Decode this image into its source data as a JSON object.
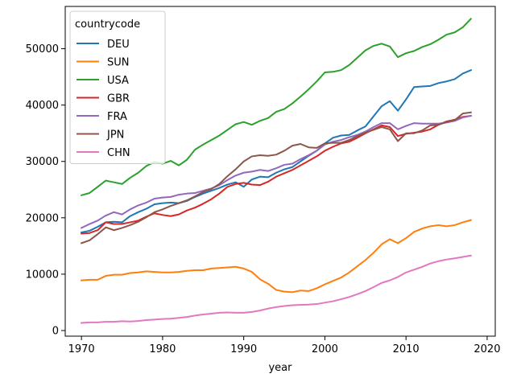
{
  "chart_data": {
    "type": "line",
    "xlabel": "year",
    "ylabel": "",
    "xlim": [
      1968,
      2021
    ],
    "ylim": [
      -1000,
      57500
    ],
    "xticks": [
      1970,
      1980,
      1990,
      2000,
      2010,
      2020
    ],
    "yticks": [
      0,
      10000,
      20000,
      30000,
      40000,
      50000
    ],
    "grid": false,
    "legend": {
      "title": "countrycode",
      "placement": "top-left"
    },
    "x": [
      1970,
      1971,
      1972,
      1973,
      1974,
      1975,
      1976,
      1977,
      1978,
      1979,
      1980,
      1981,
      1982,
      1983,
      1984,
      1985,
      1986,
      1987,
      1988,
      1989,
      1990,
      1991,
      1992,
      1993,
      1994,
      1995,
      1996,
      1997,
      1998,
      1999,
      2000,
      2001,
      2002,
      2003,
      2004,
      2005,
      2006,
      2007,
      2008,
      2009,
      2010,
      2011,
      2012,
      2013,
      2014,
      2015,
      2016,
      2017,
      2018
    ],
    "series": [
      {
        "name": "DEU",
        "color": "#1f77b4",
        "values": [
          17400,
          17700,
          18400,
          19200,
          19300,
          19200,
          20300,
          21000,
          21600,
          22400,
          22600,
          22700,
          22600,
          23000,
          23700,
          24300,
          24800,
          25300,
          25900,
          26300,
          25500,
          26800,
          27300,
          27200,
          28000,
          28600,
          29000,
          30000,
          31000,
          31900,
          33200,
          34200,
          34600,
          34700,
          35500,
          36200,
          38000,
          39800,
          40700,
          39000,
          41000,
          43200,
          43300,
          43400,
          43900,
          44200,
          44600,
          45600,
          46200
        ]
      },
      {
        "name": "SUN",
        "color": "#ff7f0e",
        "values": [
          8900,
          9000,
          9000,
          9700,
          9900,
          9900,
          10200,
          10300,
          10500,
          10400,
          10300,
          10300,
          10400,
          10600,
          10700,
          10700,
          11000,
          11100,
          11200,
          11300,
          11000,
          10400,
          9100,
          8300,
          7200,
          6900,
          6800,
          7100,
          7000,
          7500,
          8200,
          8800,
          9400,
          10300,
          11400,
          12500,
          13800,
          15300,
          16200,
          15500,
          16400,
          17500,
          18100,
          18500,
          18700,
          18500,
          18700,
          19200,
          19600
        ]
      },
      {
        "name": "USA",
        "color": "#2ca02c",
        "values": [
          24000,
          24400,
          25500,
          26600,
          26300,
          26000,
          27100,
          28000,
          29200,
          29900,
          29600,
          30100,
          29300,
          30300,
          32100,
          33000,
          33800,
          34600,
          35600,
          36600,
          37000,
          36500,
          37200,
          37700,
          38800,
          39300,
          40300,
          41500,
          42800,
          44200,
          45800,
          45900,
          46200,
          47100,
          48400,
          49700,
          50500,
          50900,
          50400,
          48500,
          49200,
          49600,
          50300,
          50800,
          51600,
          52500,
          52900,
          53800,
          55300
        ]
      },
      {
        "name": "GBR",
        "color": "#d62728",
        "values": [
          17200,
          17300,
          17800,
          19200,
          18900,
          18900,
          19200,
          19500,
          20200,
          20800,
          20500,
          20300,
          20600,
          21300,
          21800,
          22500,
          23300,
          24300,
          25500,
          26000,
          26200,
          25900,
          25800,
          26400,
          27300,
          27900,
          28500,
          29300,
          30100,
          30900,
          31900,
          32600,
          33200,
          33500,
          34200,
          35000,
          35700,
          36400,
          36100,
          34500,
          34900,
          35100,
          35300,
          35700,
          36500,
          37100,
          37400,
          37900,
          38100
        ]
      },
      {
        "name": "FRA",
        "color": "#9467bd",
        "values": [
          18200,
          18900,
          19500,
          20400,
          21000,
          20600,
          21500,
          22200,
          22700,
          23400,
          23600,
          23700,
          24100,
          24300,
          24400,
          24800,
          25200,
          25800,
          26700,
          27500,
          28000,
          28200,
          28500,
          28300,
          28800,
          29400,
          29600,
          30400,
          31100,
          31900,
          33000,
          33500,
          33800,
          34300,
          34700,
          35300,
          36100,
          36800,
          36800,
          35700,
          36300,
          36800,
          36700,
          36700,
          36700,
          36900,
          37200,
          37800,
          38100
        ]
      },
      {
        "name": "JPN",
        "color": "#8c564b",
        "values": [
          15500,
          16000,
          17100,
          18300,
          17800,
          18200,
          18700,
          19300,
          20100,
          21000,
          21500,
          22100,
          22600,
          23100,
          23800,
          24600,
          25100,
          26000,
          27400,
          28600,
          30000,
          30900,
          31100,
          31000,
          31200,
          31900,
          32800,
          33100,
          32500,
          32400,
          33200,
          33300,
          33300,
          33800,
          34500,
          35100,
          35600,
          36100,
          35700,
          33600,
          35000,
          35000,
          35500,
          36400,
          36500,
          37000,
          37300,
          38500,
          38700
        ]
      },
      {
        "name": "CHN",
        "color": "#e377c2",
        "values": [
          1350,
          1450,
          1450,
          1550,
          1550,
          1650,
          1600,
          1700,
          1850,
          1950,
          2050,
          2100,
          2250,
          2400,
          2650,
          2850,
          3000,
          3150,
          3200,
          3150,
          3150,
          3300,
          3550,
          3900,
          4150,
          4350,
          4500,
          4550,
          4600,
          4700,
          4950,
          5200,
          5550,
          5950,
          6450,
          7000,
          7700,
          8450,
          8900,
          9500,
          10300,
          10800,
          11300,
          11900,
          12300,
          12600,
          12800,
          13050,
          13300
        ]
      }
    ]
  }
}
